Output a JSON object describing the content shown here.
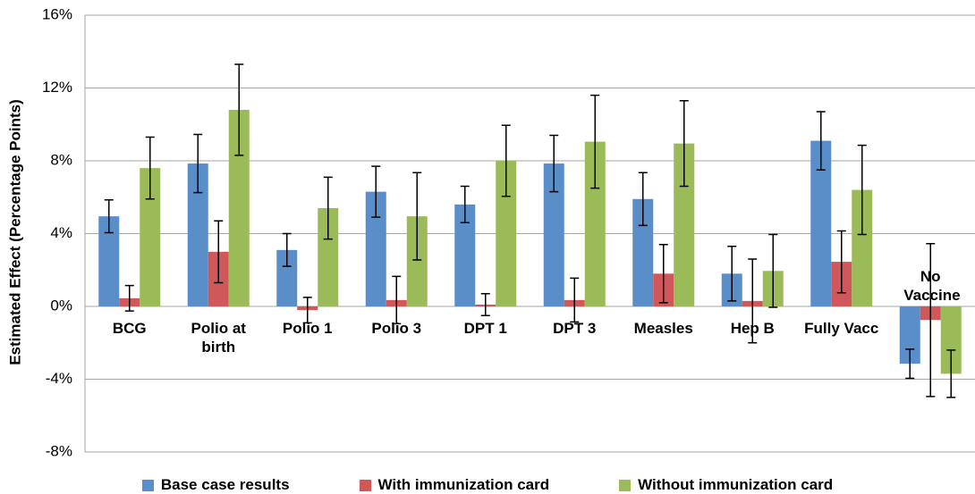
{
  "chart_data": {
    "type": "bar",
    "y_label": "Estimated Effect (Percentage Points)",
    "categories": [
      "BCG",
      "Polio at birth",
      "Polio 1",
      "Polio 3",
      "DPT 1",
      "DPT 3",
      "Measles",
      "Hep B",
      "Fully Vacc",
      "No Vaccine"
    ],
    "series": [
      {
        "name": "Base case results",
        "color": "#5a8ec8",
        "values": [
          4.95,
          7.85,
          3.1,
          6.3,
          5.6,
          7.85,
          5.9,
          1.8,
          9.1,
          -3.15
        ],
        "errors": [
          0.9,
          1.6,
          0.9,
          1.4,
          1.0,
          1.55,
          1.45,
          1.5,
          1.6,
          0.8
        ]
      },
      {
        "name": "With immunization card",
        "color": "#d0585a",
        "values": [
          0.45,
          3.0,
          -0.2,
          0.35,
          0.1,
          0.35,
          1.8,
          0.3,
          2.45,
          -0.75
        ],
        "errors": [
          0.7,
          1.7,
          0.7,
          1.3,
          0.6,
          1.2,
          1.6,
          2.3,
          1.7,
          4.2
        ]
      },
      {
        "name": "Without immunization card",
        "color": "#9bbb59",
        "values": [
          7.6,
          10.8,
          5.4,
          4.95,
          8.0,
          9.05,
          8.95,
          1.95,
          6.4,
          -3.7
        ],
        "errors": [
          1.7,
          2.5,
          1.7,
          2.4,
          1.95,
          2.55,
          2.35,
          2.0,
          2.45,
          1.3
        ]
      }
    ],
    "ylim": [
      -8,
      16
    ],
    "yticks": [
      {
        "value": -8,
        "label": "-8%"
      },
      {
        "value": -4,
        "label": "-4%"
      },
      {
        "value": 0,
        "label": "0%"
      },
      {
        "value": 4,
        "label": "4%"
      },
      {
        "value": 8,
        "label": "8%"
      },
      {
        "value": 12,
        "label": "12%"
      },
      {
        "value": 16,
        "label": "16%"
      }
    ],
    "grid": true
  }
}
